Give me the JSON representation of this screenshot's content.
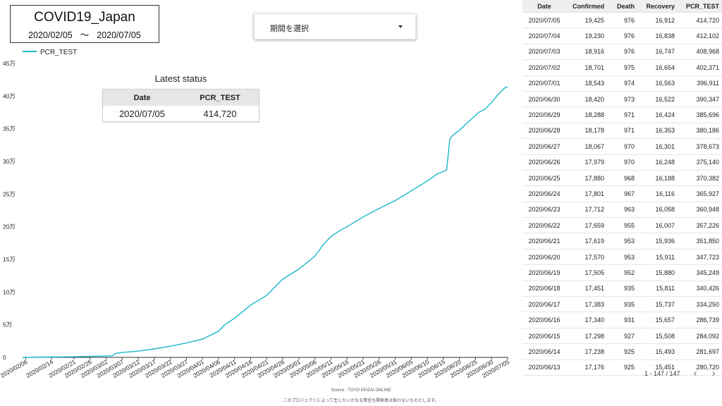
{
  "header": {
    "title": "COVID19_Japan",
    "date_start": "2020/02/05",
    "date_sep": "〜",
    "date_end": "2020/07/05"
  },
  "period_dropdown": {
    "label": "期間を選択"
  },
  "latest_status": {
    "title": "Latest status",
    "col_date": "Date",
    "col_pcr": "PCR_TEST",
    "date": "2020/07/05",
    "pcr": "414,720"
  },
  "table": {
    "columns": [
      "Date",
      "Confirmed",
      "Death",
      "Recovery",
      "PCR_TEST"
    ],
    "rows": [
      [
        "2020/07/05",
        "19,425",
        "976",
        "16,912",
        "414,720"
      ],
      [
        "2020/07/04",
        "19,230",
        "976",
        "16,838",
        "412,102"
      ],
      [
        "2020/07/03",
        "18,916",
        "976",
        "16,747",
        "408,968"
      ],
      [
        "2020/07/02",
        "18,701",
        "975",
        "16,654",
        "402,371"
      ],
      [
        "2020/07/01",
        "18,543",
        "974",
        "16,563",
        "396,911"
      ],
      [
        "2020/06/30",
        "18,420",
        "973",
        "16,522",
        "390,347"
      ],
      [
        "2020/06/29",
        "18,288",
        "971",
        "16,424",
        "385,696"
      ],
      [
        "2020/06/28",
        "18,178",
        "971",
        "16,353",
        "380,186"
      ],
      [
        "2020/06/27",
        "18,067",
        "970",
        "16,301",
        "378,673"
      ],
      [
        "2020/06/26",
        "17,979",
        "970",
        "16,248",
        "375,140"
      ],
      [
        "2020/06/25",
        "17,880",
        "968",
        "16,188",
        "370,382"
      ],
      [
        "2020/06/24",
        "17,801",
        "967",
        "16,116",
        "365,927"
      ],
      [
        "2020/06/23",
        "17,712",
        "963",
        "16,058",
        "360,948"
      ],
      [
        "2020/06/22",
        "17,659",
        "955",
        "16,007",
        "357,226"
      ],
      [
        "2020/06/21",
        "17,619",
        "953",
        "15,936",
        "351,850"
      ],
      [
        "2020/06/20",
        "17,570",
        "953",
        "15,911",
        "347,723"
      ],
      [
        "2020/06/19",
        "17,505",
        "952",
        "15,880",
        "345,249"
      ],
      [
        "2020/06/18",
        "17,451",
        "935",
        "15,811",
        "340,426"
      ],
      [
        "2020/06/17",
        "17,383",
        "935",
        "15,737",
        "334,250"
      ],
      [
        "2020/06/16",
        "17,340",
        "931",
        "15,657",
        "286,739"
      ],
      [
        "2020/06/15",
        "17,298",
        "927",
        "15,508",
        "284,092"
      ],
      [
        "2020/06/14",
        "17,238",
        "925",
        "15,493",
        "281,697"
      ],
      [
        "2020/06/13",
        "17,176",
        "925",
        "15,451",
        "280,720"
      ]
    ]
  },
  "pager": {
    "count": "1 - 147 / 147",
    "prev_icon": "chevron-left-icon",
    "next_icon": "chevron-right-icon"
  },
  "footer": {
    "source": "Source : TOYO KEIZAI ONLINE",
    "disclaimer": "このプロジェクトによって生じたいかなる責任も開発者は負わないものとします。"
  },
  "chart_data": {
    "type": "line",
    "series": [
      {
        "name": "PCR_TEST",
        "color": "#1ab8c8",
        "values": [
          [
            "2020/02/05",
            0
          ],
          [
            "2020/02/14",
            500
          ],
          [
            "2020/02/21",
            1000
          ],
          [
            "2020/02/26",
            1500
          ],
          [
            "2020/03/02",
            2000
          ],
          [
            "2020/03/04",
            2500
          ],
          [
            "2020/03/05",
            6000
          ],
          [
            "2020/03/07",
            7500
          ],
          [
            "2020/03/12",
            9500
          ],
          [
            "2020/03/17",
            13000
          ],
          [
            "2020/03/22",
            17000
          ],
          [
            "2020/03/27",
            22000
          ],
          [
            "2020/04/01",
            28000
          ],
          [
            "2020/04/06",
            40000
          ],
          [
            "2020/04/08",
            50000
          ],
          [
            "2020/04/11",
            60000
          ],
          [
            "2020/04/16",
            80000
          ],
          [
            "2020/04/21",
            95000
          ],
          [
            "2020/04/26",
            120000
          ],
          [
            "2020/05/01",
            135000
          ],
          [
            "2020/05/06",
            155000
          ],
          [
            "2020/05/09",
            175000
          ],
          [
            "2020/05/11",
            185000
          ],
          [
            "2020/05/14",
            195000
          ],
          [
            "2020/05/16",
            200000
          ],
          [
            "2020/05/21",
            215000
          ],
          [
            "2020/05/26",
            228000
          ],
          [
            "2020/05/31",
            240000
          ],
          [
            "2020/06/05",
            255000
          ],
          [
            "2020/06/10",
            270000
          ],
          [
            "2020/06/13",
            280720
          ],
          [
            "2020/06/16",
            286739
          ],
          [
            "2020/06/17",
            334250
          ],
          [
            "2020/06/18",
            340426
          ],
          [
            "2020/06/20",
            347723
          ],
          [
            "2020/06/22",
            357226
          ],
          [
            "2020/06/24",
            365927
          ],
          [
            "2020/06/26",
            375140
          ],
          [
            "2020/06/28",
            380186
          ],
          [
            "2020/06/30",
            390347
          ],
          [
            "2020/07/02",
            402371
          ],
          [
            "2020/07/04",
            412102
          ],
          [
            "2020/07/05",
            414720
          ]
        ]
      }
    ],
    "x_ticks": [
      "2020/02/06",
      "2020/02/14",
      "2020/02/21",
      "2020/02/26",
      "2020/03/02",
      "2020/03/07",
      "2020/03/12",
      "2020/03/17",
      "2020/03/22",
      "2020/03/27",
      "2020/04/01",
      "2020/04/06",
      "2020/04/11",
      "2020/04/16",
      "2020/04/21",
      "2020/04/26",
      "2020/05/01",
      "2020/05/06",
      "2020/05/11",
      "2020/05/16",
      "2020/05/21",
      "2020/05/26",
      "2020/05/31",
      "2020/06/05",
      "2020/06/10",
      "2020/06/15",
      "2020/06/20",
      "2020/06/25",
      "2020/06/30",
      "2020/07/05"
    ],
    "y_ticks": [
      0,
      50000,
      100000,
      150000,
      200000,
      250000,
      300000,
      350000,
      400000,
      450000
    ],
    "y_tick_labels": [
      "0",
      "5万",
      "10万",
      "15万",
      "20万",
      "25万",
      "30万",
      "35万",
      "40万",
      "45万"
    ],
    "ylim": [
      0,
      450000
    ],
    "xlim": [
      "2020/02/05",
      "2020/07/05"
    ],
    "legend": "top-left",
    "grid": false
  }
}
